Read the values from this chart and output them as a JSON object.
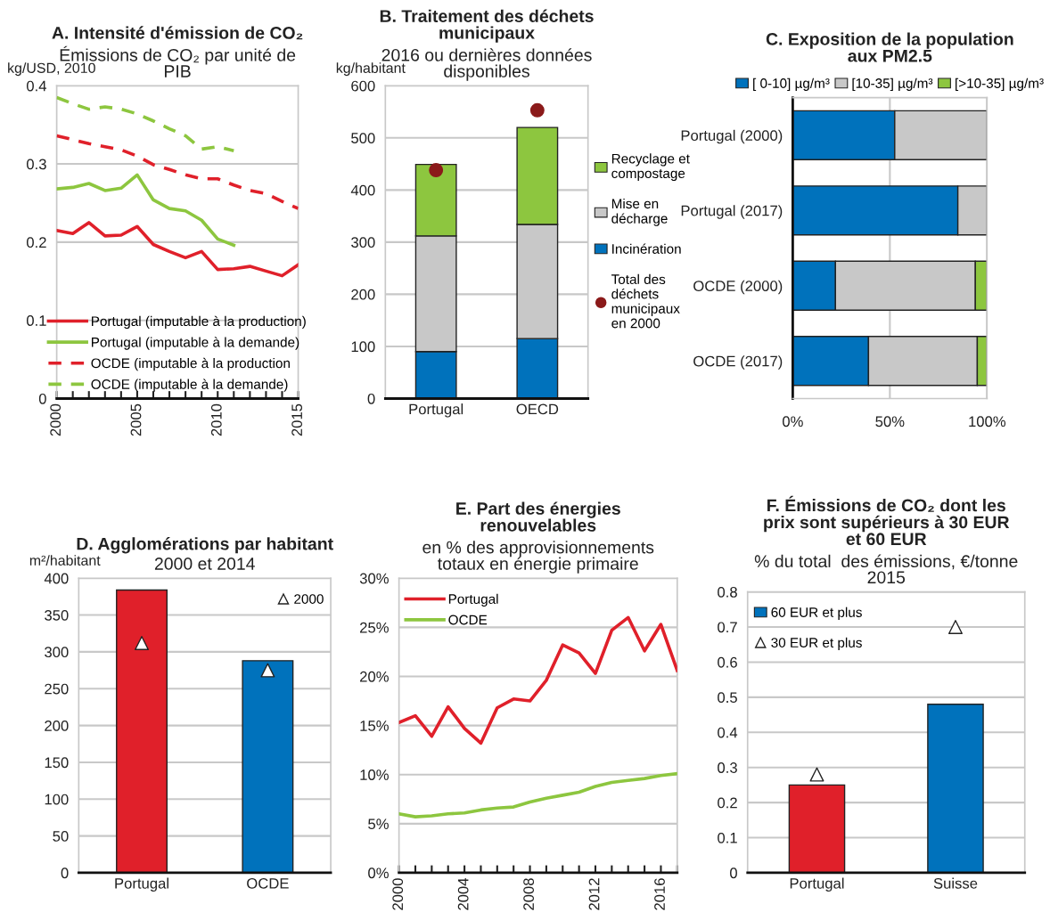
{
  "chart_data": [
    {
      "type": "line",
      "title": "A. Intensité d'émission de CO₂",
      "subtitle": "Émissions de CO₂ par unité de\nPIB",
      "ylabel": "kg/USD, 2010",
      "x": [
        2000,
        2001,
        2002,
        2003,
        2004,
        2005,
        2006,
        2007,
        2008,
        2009,
        2010,
        2011,
        2012,
        2013,
        2014,
        2015
      ],
      "xlim": [
        2000,
        2015
      ],
      "xticks": [
        2000,
        {
          "value": 2001,
          "label": null
        },
        {
          "value": 2002,
          "label": null
        },
        {
          "value": 2003,
          "label": null
        },
        {
          "value": 2004,
          "label": null
        },
        2005,
        {
          "value": 2006,
          "label": null
        },
        {
          "value": 2007,
          "label": null
        },
        {
          "value": 2008,
          "label": null
        },
        {
          "value": 2009,
          "label": null
        },
        2010,
        {
          "value": 2011,
          "label": null
        },
        {
          "value": 2012,
          "label": null
        },
        {
          "value": 2013,
          "label": null
        },
        {
          "value": 2014,
          "label": null
        },
        2015
      ],
      "ylim": [
        0,
        0.4
      ],
      "yticks": [
        0,
        0.1,
        0.2,
        0.3,
        0.4
      ],
      "grid": "y",
      "legend": "bottom",
      "series": [
        {
          "name": "Portugal (imputable à la production)",
          "color": "#e0202a",
          "line_style": "solid",
          "values": [
            0.215,
            0.211,
            0.225,
            0.208,
            0.209,
            0.22,
            0.197,
            0.188,
            0.18,
            0.188,
            0.165,
            0.166,
            0.169,
            0.163,
            0.157,
            0.171
          ]
        },
        {
          "name": "Portugal (imputable à la demande)",
          "color": "#8dc63f",
          "line_style": "solid",
          "values": [
            0.268,
            0.27,
            0.275,
            0.266,
            0.269,
            0.286,
            0.254,
            0.243,
            0.24,
            0.228,
            0.204,
            0.196,
            null,
            null,
            null,
            null
          ]
        },
        {
          "name": "OCDE (imputable à la production",
          "color": "#e0202a",
          "line_style": "dashed",
          "values": [
            0.336,
            0.331,
            0.326,
            0.322,
            0.318,
            0.31,
            0.299,
            0.293,
            0.286,
            0.281,
            0.281,
            0.273,
            0.266,
            0.262,
            0.252,
            0.243
          ]
        },
        {
          "name": "OCDE (imputable à la demande)",
          "color": "#8dc63f",
          "line_style": "dashed",
          "values": [
            0.385,
            0.377,
            0.37,
            0.373,
            0.37,
            0.364,
            0.355,
            0.345,
            0.336,
            0.319,
            0.322,
            0.317,
            null,
            null,
            null,
            null
          ]
        }
      ]
    },
    {
      "type": "bar",
      "title": "B. Traitement des déchets\nmunicipaux",
      "subtitle": "2016 ou dernières données\ndisponibles",
      "ylabel": "kg/habitant",
      "categories": [
        "Portugal",
        "OECD"
      ],
      "stacked": true,
      "ylim": [
        0,
        600
      ],
      "yticks": [
        0,
        100,
        200,
        300,
        400,
        500,
        600
      ],
      "grid": "y",
      "legend": "right",
      "series": [
        {
          "name": "Incinération",
          "color": "#0072bc",
          "values": [
            90,
            115
          ]
        },
        {
          "name": "Mise en\ndécharge",
          "color": "#c8c8c8",
          "values": [
            222,
            219
          ]
        },
        {
          "name": "Recyclage et\ncompostage",
          "color": "#8dc63f",
          "values": [
            137,
            186
          ]
        },
        {
          "name": "Total des\ndéchets\nmunicipaux\nen 2000",
          "type": "scatter",
          "marker": "circle",
          "color": "#8b1a1a",
          "x": [
            "Portugal",
            "OECD"
          ],
          "values": [
            438,
            553
          ]
        }
      ]
    },
    {
      "type": "bar",
      "title": "C. Exposition de la population\naux PM2.5",
      "orientation": "horizontal",
      "stacked": true,
      "categories": [
        "Portugal (2000)",
        "Portugal (2017)",
        "OCDE (2000)",
        "OCDE (2017)"
      ],
      "xlim": [
        0,
        100
      ],
      "xticks": [
        {
          "value": 0,
          "label": "0%"
        },
        {
          "value": 50,
          "label": "50%"
        },
        {
          "value": 100,
          "label": "100%"
        }
      ],
      "grid": "x",
      "legend": "top",
      "series": [
        {
          "name": "[ 0-10] µg/m³",
          "color": "#0072bc",
          "values": [
            52.5,
            85,
            22,
            39
          ]
        },
        {
          "name": "[10-35] µg/m³",
          "color": "#c8c8c8",
          "values": [
            47.5,
            15,
            72,
            56
          ]
        },
        {
          "name": "[>10-35] µg/m³",
          "color": "#8dc63f",
          "values": [
            null,
            null,
            6,
            5
          ]
        }
      ]
    },
    {
      "type": "bar",
      "title": "D. Agglomérations par habitant",
      "subtitle": "2000 et 2014",
      "ylabel": "m²/habitant",
      "categories": [
        "Portugal",
        "OCDE"
      ],
      "ylim": [
        0,
        400
      ],
      "yticks": [
        0,
        50,
        100,
        150,
        200,
        250,
        300,
        350,
        400
      ],
      "grid": "y",
      "legend": "top right",
      "series": [
        {
          "colors": [
            "#e0202a",
            "#0072bc"
          ],
          "values": [
            384,
            288
          ]
        },
        {
          "name": "2000",
          "type": "scatter",
          "marker": "triangle",
          "color": "#ffffff",
          "x": [
            "Portugal",
            "OCDE"
          ],
          "values": [
            312,
            275
          ]
        }
      ]
    },
    {
      "type": "line",
      "title": "E. Part des énergies\nrenouvelables",
      "subtitle": "en % des approvisionnements\ntotaux en énergie primaire",
      "x": [
        2000,
        2001,
        2002,
        2003,
        2004,
        2005,
        2006,
        2007,
        2008,
        2009,
        2010,
        2011,
        2012,
        2013,
        2014,
        2015,
        2016,
        2017
      ],
      "xlim": [
        2000,
        2017
      ],
      "xticks": [
        2000,
        {
          "value": 2001,
          "label": null
        },
        {
          "value": 2002,
          "label": null
        },
        {
          "value": 2003,
          "label": null
        },
        2004,
        {
          "value": 2005,
          "label": null
        },
        {
          "value": 2006,
          "label": null
        },
        {
          "value": 2007,
          "label": null
        },
        2008,
        {
          "value": 2009,
          "label": null
        },
        {
          "value": 2010,
          "label": null
        },
        {
          "value": 2011,
          "label": null
        },
        2012,
        {
          "value": 2013,
          "label": null
        },
        {
          "value": 2014,
          "label": null
        },
        {
          "value": 2015,
          "label": null
        },
        2016,
        {
          "value": 2017,
          "label": null
        }
      ],
      "ylim": [
        0,
        30
      ],
      "yticks": [
        {
          "value": 0,
          "label": "0%"
        },
        {
          "value": 5,
          "label": "5%"
        },
        {
          "value": 10,
          "label": "10%"
        },
        {
          "value": 15,
          "label": "15%"
        },
        {
          "value": 20,
          "label": "20%"
        },
        {
          "value": 25,
          "label": "25%"
        },
        {
          "value": 30,
          "label": "30%"
        }
      ],
      "grid": "y",
      "legend": "top left",
      "series": [
        {
          "name": "Portugal",
          "color": "#e0202a",
          "values": [
            15.3,
            16.0,
            13.9,
            16.9,
            14.7,
            13.2,
            16.8,
            17.7,
            17.5,
            19.6,
            23.2,
            22.4,
            20.3,
            24.7,
            26.0,
            22.6,
            25.3,
            20.6
          ]
        },
        {
          "name": "OCDE",
          "color": "#8dc63f",
          "values": [
            6.0,
            5.7,
            5.8,
            6.0,
            6.1,
            6.4,
            6.6,
            6.7,
            7.2,
            7.6,
            7.9,
            8.2,
            8.8,
            9.2,
            9.4,
            9.6,
            9.9,
            10.1
          ]
        }
      ]
    },
    {
      "type": "bar",
      "title": "F. Émissions de CO₂ dont les\nprix sont supérieurs à 30 EUR\net 60 EUR",
      "subtitle": "% du total  des émissions, €/tonne\n2015",
      "categories": [
        "Portugal",
        "Suisse"
      ],
      "ylim": [
        0,
        0.8
      ],
      "yticks": [
        0,
        0.1,
        0.2,
        0.3,
        0.4,
        0.5,
        0.6,
        0.7,
        0.8
      ],
      "grid": "y",
      "legend": "top left",
      "series": [
        {
          "name": "60 EUR et plus",
          "color": "#0072bc",
          "colors": [
            "#e0202a",
            "#0072bc"
          ],
          "values": [
            0.25,
            0.48
          ]
        },
        {
          "name": "30 EUR et plus",
          "type": "scatter",
          "marker": "triangle",
          "color": "#ffffff",
          "x": [
            "Portugal",
            "Suisse"
          ],
          "values": [
            0.28,
            0.7
          ]
        }
      ]
    }
  ]
}
